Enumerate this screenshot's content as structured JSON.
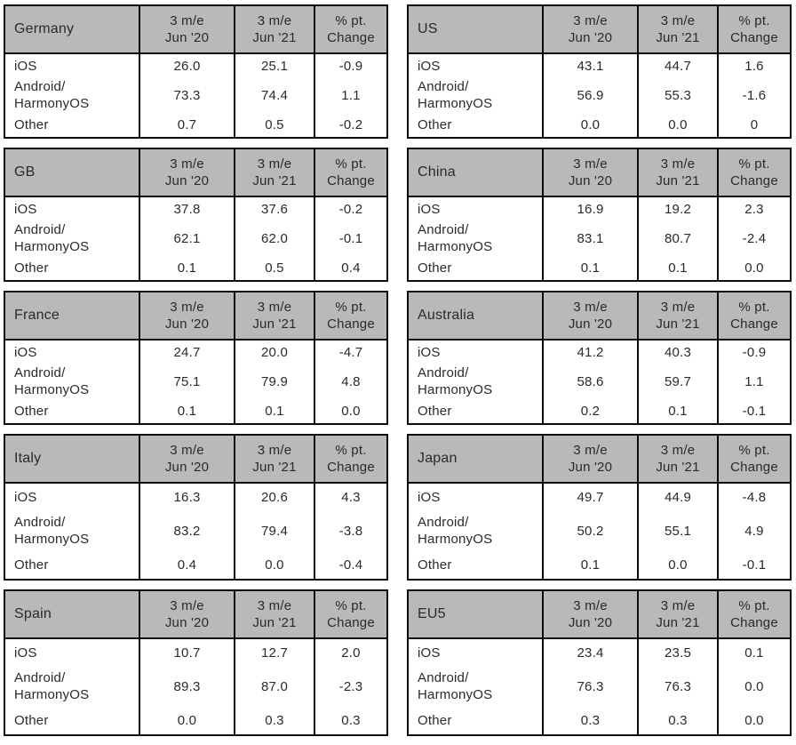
{
  "colors": {
    "header_bg": "#b9b9b9",
    "border": "#0a0a0a",
    "text": "#2a2a2a",
    "page_bg": "#ffffff"
  },
  "column_headers": {
    "period1": [
      "3 m/e",
      "Jun '20"
    ],
    "period2": [
      "3 m/e",
      "Jun '21"
    ],
    "change": [
      "% pt.",
      "Change"
    ]
  },
  "chart_data": {
    "type": "table",
    "layout": "two columns of five stacked country tables",
    "value_columns": [
      "3 m/e Jun '20",
      "3 m/e Jun '21",
      "% pt. Change"
    ],
    "row_categories": [
      "iOS",
      "Android/HarmonyOS",
      "Other"
    ],
    "tables": [
      {
        "region": "Germany",
        "tall": false,
        "column": "left",
        "rows": [
          {
            "label": "iOS",
            "v2020": "26.0",
            "v2021": "25.1",
            "change": "-0.9"
          },
          {
            "label": "Android/\nHarmonyOS",
            "v2020": "73.3",
            "v2021": "74.4",
            "change": "1.1"
          },
          {
            "label": "Other",
            "v2020": "0.7",
            "v2021": "0.5",
            "change": "-0.2"
          }
        ]
      },
      {
        "region": "GB",
        "tall": false,
        "column": "left",
        "rows": [
          {
            "label": "iOS",
            "v2020": "37.8",
            "v2021": "37.6",
            "change": "-0.2"
          },
          {
            "label": "Android/\nHarmonyOS",
            "v2020": "62.1",
            "v2021": "62.0",
            "change": "-0.1"
          },
          {
            "label": "Other",
            "v2020": "0.1",
            "v2021": "0.5",
            "change": "0.4"
          }
        ]
      },
      {
        "region": "France",
        "tall": false,
        "column": "left",
        "rows": [
          {
            "label": "iOS",
            "v2020": "24.7",
            "v2021": "20.0",
            "change": "-4.7"
          },
          {
            "label": "Android/\nHarmonyOS",
            "v2020": "75.1",
            "v2021": "79.9",
            "change": "4.8"
          },
          {
            "label": "Other",
            "v2020": "0.1",
            "v2021": "0.1",
            "change": "0.0"
          }
        ]
      },
      {
        "region": "Italy",
        "tall": true,
        "column": "left",
        "rows": [
          {
            "label": "iOS",
            "v2020": "16.3",
            "v2021": "20.6",
            "change": "4.3"
          },
          {
            "label": "Android/\nHarmonyOS",
            "v2020": "83.2",
            "v2021": "79.4",
            "change": "-3.8"
          },
          {
            "label": "Other",
            "v2020": "0.4",
            "v2021": "0.0",
            "change": "-0.4"
          }
        ]
      },
      {
        "region": "Spain",
        "tall": true,
        "column": "left",
        "rows": [
          {
            "label": "iOS",
            "v2020": "10.7",
            "v2021": "12.7",
            "change": "2.0"
          },
          {
            "label": "Android/\nHarmonyOS",
            "v2020": "89.3",
            "v2021": "87.0",
            "change": "-2.3"
          },
          {
            "label": "Other",
            "v2020": "0.0",
            "v2021": "0.3",
            "change": "0.3"
          }
        ]
      },
      {
        "region": "US",
        "tall": false,
        "column": "right",
        "rows": [
          {
            "label": "iOS",
            "v2020": "43.1",
            "v2021": "44.7",
            "change": "1.6"
          },
          {
            "label": "Android/\nHarmonyOS",
            "v2020": "56.9",
            "v2021": "55.3",
            "change": "-1.6"
          },
          {
            "label": "Other",
            "v2020": "0.0",
            "v2021": "0.0",
            "change": "0"
          }
        ]
      },
      {
        "region": "China",
        "tall": false,
        "column": "right",
        "rows": [
          {
            "label": "iOS",
            "v2020": "16.9",
            "v2021": "19.2",
            "change": "2.3"
          },
          {
            "label": "Android/\nHarmonyOS",
            "v2020": "83.1",
            "v2021": "80.7",
            "change": "-2.4"
          },
          {
            "label": "Other",
            "v2020": "0.1",
            "v2021": "0.1",
            "change": "0.0"
          }
        ]
      },
      {
        "region": "Australia",
        "tall": false,
        "column": "right",
        "rows": [
          {
            "label": "iOS",
            "v2020": "41.2",
            "v2021": "40.3",
            "change": "-0.9"
          },
          {
            "label": "Android/\nHarmonyOS",
            "v2020": "58.6",
            "v2021": "59.7",
            "change": "1.1"
          },
          {
            "label": "Other",
            "v2020": "0.2",
            "v2021": "0.1",
            "change": "-0.1"
          }
        ]
      },
      {
        "region": "Japan",
        "tall": true,
        "column": "right",
        "rows": [
          {
            "label": "iOS",
            "v2020": "49.7",
            "v2021": "44.9",
            "change": "-4.8"
          },
          {
            "label": "Android/\nHarmonyOS",
            "v2020": "50.2",
            "v2021": "55.1",
            "change": "4.9"
          },
          {
            "label": "Other",
            "v2020": "0.1",
            "v2021": "0.0",
            "change": "-0.1"
          }
        ]
      },
      {
        "region": "EU5",
        "tall": true,
        "column": "right",
        "rows": [
          {
            "label": "iOS",
            "v2020": "23.4",
            "v2021": "23.5",
            "change": "0.1"
          },
          {
            "label": "Android/\nHarmonyOS",
            "v2020": "76.3",
            "v2021": "76.3",
            "change": "0.0"
          },
          {
            "label": "Other",
            "v2020": "0.3",
            "v2021": "0.3",
            "change": "0.0"
          }
        ]
      }
    ]
  }
}
